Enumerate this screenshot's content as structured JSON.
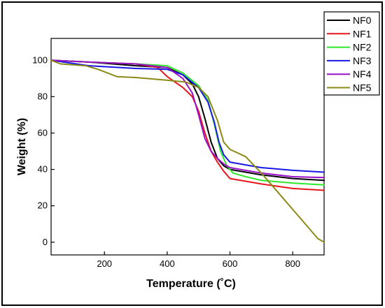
{
  "chart_data": {
    "type": "line",
    "title": "",
    "xlabel": "Temperature (˚C)",
    "ylabel": "Weight (%)",
    "xlim": [
      30,
      900
    ],
    "ylim": [
      -7,
      112
    ],
    "x_ticks": [
      200,
      400,
      600,
      800
    ],
    "y_ticks": [
      0,
      20,
      40,
      60,
      80,
      100
    ],
    "grid": false,
    "legend_position": "top-right, outside plot area",
    "series": [
      {
        "name": "NF0",
        "color": "#000000",
        "x": [
          30,
          150,
          300,
          400,
          450,
          480,
          500,
          520,
          540,
          560,
          580,
          600,
          700,
          800,
          900
        ],
        "y": [
          100,
          99,
          97,
          96,
          92,
          87,
          80,
          68,
          55,
          46,
          42,
          40,
          37,
          35,
          34
        ]
      },
      {
        "name": "NF1",
        "color": "#e8141b",
        "x": [
          30,
          150,
          300,
          370,
          400,
          450,
          480,
          500,
          520,
          540,
          560,
          580,
          600,
          700,
          800,
          900
        ],
        "y": [
          100,
          99,
          98,
          96,
          91,
          85,
          80,
          72,
          60,
          50,
          44,
          39,
          35,
          32,
          29.5,
          28.5
        ]
      },
      {
        "name": "NF2",
        "color": "#2ee82a",
        "x": [
          30,
          150,
          300,
          400,
          450,
          500,
          530,
          550,
          570,
          590,
          610,
          650,
          700,
          800,
          900
        ],
        "y": [
          100,
          99,
          98,
          97,
          93,
          86,
          78,
          65,
          50,
          42,
          38,
          36,
          34,
          32.5,
          31.5
        ]
      },
      {
        "name": "NF3",
        "color": "#1818e6",
        "x": [
          30,
          150,
          300,
          400,
          450,
          500,
          530,
          550,
          565,
          580,
          600,
          650,
          700,
          800,
          900
        ],
        "y": [
          100,
          97,
          95.5,
          95,
          92,
          85,
          77,
          66,
          55,
          48,
          44,
          42.5,
          41,
          39.5,
          38.5
        ]
      },
      {
        "name": "NF4",
        "color": "#9a10c9",
        "x": [
          30,
          150,
          300,
          400,
          450,
          480,
          500,
          520,
          540,
          560,
          580,
          600,
          700,
          800,
          900
        ],
        "y": [
          100,
          99,
          98,
          96,
          90,
          82,
          70,
          57,
          50,
          46,
          43,
          41,
          38,
          36,
          35.5
        ]
      },
      {
        "name": "NF5",
        "color": "#8b8a16",
        "x": [
          30,
          60,
          140,
          180,
          240,
          300,
          400,
          460,
          500,
          530,
          560,
          580,
          600,
          650,
          700,
          750,
          800,
          850,
          880,
          900
        ],
        "y": [
          100,
          98,
          97,
          95,
          91,
          90.5,
          89,
          88,
          85,
          80,
          67,
          55,
          51,
          47,
          38,
          28,
          18,
          8,
          2,
          0
        ]
      }
    ]
  }
}
